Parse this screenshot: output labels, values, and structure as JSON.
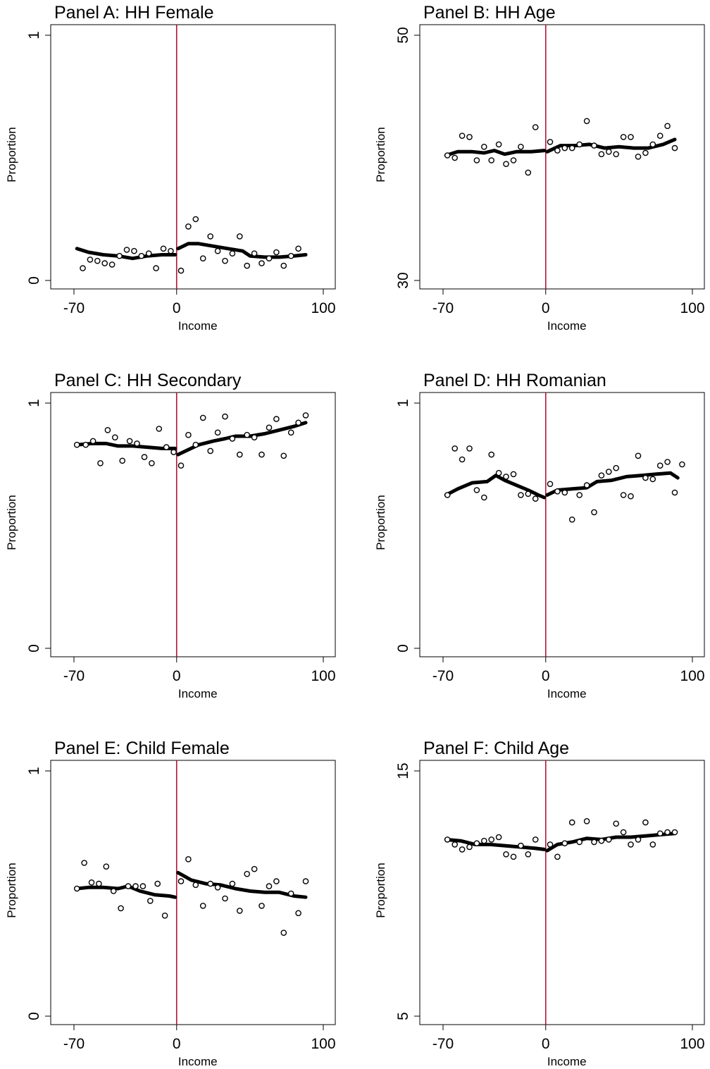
{
  "figure": {
    "cutoff_color": "#b0143c",
    "line_color": "#000000",
    "background": "#ffffff"
  },
  "chart_data": [
    {
      "type": "scatter",
      "title": "Panel A: HH Female",
      "xlabel": "Income",
      "ylabel": "Proportion",
      "xlim": [
        -70,
        100
      ],
      "ylim": [
        0,
        1
      ],
      "xticks": [
        "-70",
        "0",
        "100"
      ],
      "yticks": [
        "0",
        "1"
      ],
      "cutoff": 0,
      "points": [
        [
          -64,
          0.05
        ],
        [
          -59,
          0.085
        ],
        [
          -54,
          0.08
        ],
        [
          -49,
          0.07
        ],
        [
          -44,
          0.065
        ],
        [
          -39,
          0.1
        ],
        [
          -34,
          0.125
        ],
        [
          -29,
          0.12
        ],
        [
          -24,
          0.1
        ],
        [
          -19,
          0.11
        ],
        [
          -14,
          0.05
        ],
        [
          -9,
          0.13
        ],
        [
          -4,
          0.12
        ],
        [
          3,
          0.04
        ],
        [
          8,
          0.22
        ],
        [
          13,
          0.25
        ],
        [
          18,
          0.09
        ],
        [
          23,
          0.18
        ],
        [
          28,
          0.12
        ],
        [
          33,
          0.08
        ],
        [
          38,
          0.11
        ],
        [
          43,
          0.18
        ],
        [
          48,
          0.06
        ],
        [
          53,
          0.11
        ],
        [
          58,
          0.07
        ],
        [
          63,
          0.09
        ],
        [
          68,
          0.115
        ],
        [
          73,
          0.06
        ],
        [
          78,
          0.1
        ],
        [
          83,
          0.13
        ]
      ],
      "smooth_left": [
        [
          -68,
          0.13
        ],
        [
          -60,
          0.115
        ],
        [
          -50,
          0.105
        ],
        [
          -40,
          0.1
        ],
        [
          -30,
          0.09
        ],
        [
          -20,
          0.1
        ],
        [
          -10,
          0.105
        ],
        [
          -1,
          0.105
        ]
      ],
      "smooth_right": [
        [
          1,
          0.13
        ],
        [
          8,
          0.15
        ],
        [
          15,
          0.15
        ],
        [
          25,
          0.14
        ],
        [
          35,
          0.13
        ],
        [
          45,
          0.12
        ],
        [
          50,
          0.1
        ],
        [
          60,
          0.095
        ],
        [
          70,
          0.095
        ],
        [
          80,
          0.1
        ],
        [
          88,
          0.105
        ]
      ]
    },
    {
      "type": "scatter",
      "title": "Panel B: HH Age",
      "xlabel": "Income",
      "ylabel": "Proportion",
      "xlim": [
        -70,
        100
      ],
      "ylim": [
        30,
        50
      ],
      "xticks": [
        "-70",
        "0",
        "100"
      ],
      "yticks": [
        "30",
        "50"
      ],
      "cutoff": 0,
      "points": [
        [
          -67,
          40.2
        ],
        [
          -62,
          40
        ],
        [
          -57,
          41.8
        ],
        [
          -52,
          41.7
        ],
        [
          -47,
          39.8
        ],
        [
          -42,
          40.9
        ],
        [
          -37,
          39.8
        ],
        [
          -32,
          41.1
        ],
        [
          -27,
          39.5
        ],
        [
          -22,
          39.8
        ],
        [
          -17,
          40.9
        ],
        [
          -12,
          38.8
        ],
        [
          -7,
          42.5
        ],
        [
          3,
          41.3
        ],
        [
          8,
          40.6
        ],
        [
          13,
          40.8
        ],
        [
          18,
          40.8
        ],
        [
          23,
          41.1
        ],
        [
          28,
          43
        ],
        [
          33,
          41
        ],
        [
          38,
          40.3
        ],
        [
          43,
          40.5
        ],
        [
          48,
          40.3
        ],
        [
          53,
          41.7
        ],
        [
          58,
          41.7
        ],
        [
          63,
          40.1
        ],
        [
          68,
          40.4
        ],
        [
          73,
          41.1
        ],
        [
          78,
          41.8
        ],
        [
          83,
          42.6
        ],
        [
          88,
          40.8
        ]
      ],
      "smooth_left": [
        [
          -68,
          40.2
        ],
        [
          -60,
          40.5
        ],
        [
          -50,
          40.5
        ],
        [
          -42,
          40.4
        ],
        [
          -35,
          40.6
        ],
        [
          -28,
          40.3
        ],
        [
          -20,
          40.5
        ],
        [
          -10,
          40.5
        ],
        [
          -1,
          40.6
        ]
      ],
      "smooth_right": [
        [
          1,
          40.5
        ],
        [
          10,
          41
        ],
        [
          20,
          41
        ],
        [
          30,
          41.1
        ],
        [
          40,
          40.8
        ],
        [
          50,
          40.9
        ],
        [
          60,
          40.8
        ],
        [
          70,
          40.8
        ],
        [
          80,
          41.1
        ],
        [
          88,
          41.5
        ]
      ]
    },
    {
      "type": "scatter",
      "title": "Panel C: HH Secondary",
      "xlabel": "Income",
      "ylabel": "Proportion",
      "xlim": [
        -70,
        100
      ],
      "ylim": [
        0,
        1
      ],
      "xticks": [
        "-70",
        "0",
        "100"
      ],
      "yticks": [
        "0",
        "1"
      ],
      "cutoff": 0,
      "points": [
        [
          -68,
          0.83
        ],
        [
          -62,
          0.83
        ],
        [
          -57,
          0.845
        ],
        [
          -52,
          0.755
        ],
        [
          -47,
          0.89
        ],
        [
          -42,
          0.86
        ],
        [
          -37,
          0.765
        ],
        [
          -32,
          0.845
        ],
        [
          -27,
          0.835
        ],
        [
          -22,
          0.78
        ],
        [
          -17,
          0.755
        ],
        [
          -12,
          0.895
        ],
        [
          -7,
          0.82
        ],
        [
          -2,
          0.8
        ],
        [
          3,
          0.745
        ],
        [
          8,
          0.87
        ],
        [
          13,
          0.83
        ],
        [
          18,
          0.94
        ],
        [
          23,
          0.805
        ],
        [
          28,
          0.88
        ],
        [
          33,
          0.945
        ],
        [
          38,
          0.855
        ],
        [
          43,
          0.79
        ],
        [
          48,
          0.87
        ],
        [
          53,
          0.86
        ],
        [
          58,
          0.79
        ],
        [
          63,
          0.9
        ],
        [
          68,
          0.935
        ],
        [
          73,
          0.785
        ],
        [
          78,
          0.88
        ],
        [
          83,
          0.92
        ],
        [
          88,
          0.95
        ]
      ],
      "smooth_left": [
        [
          -68,
          0.83
        ],
        [
          -58,
          0.835
        ],
        [
          -48,
          0.835
        ],
        [
          -40,
          0.825
        ],
        [
          -30,
          0.825
        ],
        [
          -20,
          0.82
        ],
        [
          -10,
          0.815
        ],
        [
          -1,
          0.815
        ]
      ],
      "smooth_right": [
        [
          1,
          0.79
        ],
        [
          8,
          0.81
        ],
        [
          15,
          0.83
        ],
        [
          25,
          0.845
        ],
        [
          33,
          0.855
        ],
        [
          40,
          0.865
        ],
        [
          50,
          0.865
        ],
        [
          60,
          0.875
        ],
        [
          70,
          0.89
        ],
        [
          80,
          0.905
        ],
        [
          88,
          0.92
        ]
      ]
    },
    {
      "type": "scatter",
      "title": "Panel D: HH Romanian",
      "xlabel": "Income",
      "ylabel": "Proportion",
      "xlim": [
        -70,
        100
      ],
      "ylim": [
        0,
        1
      ],
      "xticks": [
        "-70",
        "0",
        "100"
      ],
      "yticks": [
        "0",
        "1"
      ],
      "cutoff": 0,
      "points": [
        [
          -67,
          0.625
        ],
        [
          -62,
          0.815
        ],
        [
          -57,
          0.77
        ],
        [
          -52,
          0.815
        ],
        [
          -47,
          0.645
        ],
        [
          -42,
          0.615
        ],
        [
          -37,
          0.79
        ],
        [
          -32,
          0.715
        ],
        [
          -27,
          0.7
        ],
        [
          -22,
          0.71
        ],
        [
          -17,
          0.625
        ],
        [
          -12,
          0.63
        ],
        [
          -7,
          0.61
        ],
        [
          3,
          0.67
        ],
        [
          8,
          0.64
        ],
        [
          13,
          0.635
        ],
        [
          18,
          0.525
        ],
        [
          23,
          0.625
        ],
        [
          28,
          0.665
        ],
        [
          33,
          0.555
        ],
        [
          38,
          0.705
        ],
        [
          43,
          0.72
        ],
        [
          48,
          0.735
        ],
        [
          53,
          0.625
        ],
        [
          58,
          0.62
        ],
        [
          63,
          0.785
        ],
        [
          68,
          0.695
        ],
        [
          73,
          0.69
        ],
        [
          78,
          0.745
        ],
        [
          83,
          0.76
        ],
        [
          88,
          0.635
        ],
        [
          93,
          0.75
        ]
      ],
      "smooth_left": [
        [
          -68,
          0.625
        ],
        [
          -60,
          0.65
        ],
        [
          -50,
          0.675
        ],
        [
          -40,
          0.68
        ],
        [
          -34,
          0.705
        ],
        [
          -28,
          0.685
        ],
        [
          -20,
          0.665
        ],
        [
          -12,
          0.645
        ],
        [
          -5,
          0.625
        ],
        [
          -1,
          0.615
        ]
      ],
      "smooth_right": [
        [
          1,
          0.625
        ],
        [
          8,
          0.645
        ],
        [
          18,
          0.65
        ],
        [
          28,
          0.655
        ],
        [
          35,
          0.68
        ],
        [
          45,
          0.685
        ],
        [
          55,
          0.7
        ],
        [
          65,
          0.705
        ],
        [
          75,
          0.71
        ],
        [
          85,
          0.715
        ],
        [
          90,
          0.695
        ]
      ]
    },
    {
      "type": "scatter",
      "title": "Panel E: Child Female",
      "xlabel": "Income",
      "ylabel": "Proportion",
      "xlim": [
        -70,
        100
      ],
      "ylim": [
        0,
        1
      ],
      "xticks": [
        "-70",
        "0",
        "100"
      ],
      "yticks": [
        "0",
        "1"
      ],
      "cutoff": 0,
      "points": [
        [
          -68,
          0.52
        ],
        [
          -63,
          0.625
        ],
        [
          -58,
          0.545
        ],
        [
          -53,
          0.54
        ],
        [
          -48,
          0.61
        ],
        [
          -43,
          0.51
        ],
        [
          -38,
          0.44
        ],
        [
          -33,
          0.53
        ],
        [
          -28,
          0.53
        ],
        [
          -23,
          0.53
        ],
        [
          -18,
          0.47
        ],
        [
          -13,
          0.54
        ],
        [
          -8,
          0.41
        ],
        [
          3,
          0.55
        ],
        [
          8,
          0.64
        ],
        [
          13,
          0.535
        ],
        [
          18,
          0.45
        ],
        [
          23,
          0.54
        ],
        [
          28,
          0.525
        ],
        [
          33,
          0.48
        ],
        [
          38,
          0.54
        ],
        [
          43,
          0.43
        ],
        [
          48,
          0.58
        ],
        [
          53,
          0.6
        ],
        [
          58,
          0.45
        ],
        [
          63,
          0.53
        ],
        [
          68,
          0.55
        ],
        [
          73,
          0.34
        ],
        [
          78,
          0.5
        ],
        [
          83,
          0.42
        ],
        [
          88,
          0.55
        ]
      ],
      "smooth_left": [
        [
          -68,
          0.52
        ],
        [
          -60,
          0.525
        ],
        [
          -50,
          0.525
        ],
        [
          -40,
          0.52
        ],
        [
          -33,
          0.53
        ],
        [
          -25,
          0.51
        ],
        [
          -15,
          0.495
        ],
        [
          -5,
          0.49
        ],
        [
          -1,
          0.485
        ]
      ],
      "smooth_right": [
        [
          1,
          0.585
        ],
        [
          10,
          0.555
        ],
        [
          20,
          0.54
        ],
        [
          30,
          0.535
        ],
        [
          40,
          0.52
        ],
        [
          50,
          0.51
        ],
        [
          60,
          0.505
        ],
        [
          70,
          0.505
        ],
        [
          80,
          0.49
        ],
        [
          88,
          0.485
        ]
      ]
    },
    {
      "type": "scatter",
      "title": "Panel F: Child Age",
      "xlabel": "Income",
      "ylabel": "Proportion",
      "xlim": [
        -70,
        100
      ],
      "ylim": [
        5,
        15
      ],
      "xticks": [
        "-70",
        "0",
        "100"
      ],
      "yticks": [
        "5",
        "15"
      ],
      "cutoff": 0,
      "points": [
        [
          -67,
          12.2
        ],
        [
          -62,
          12
        ],
        [
          -57,
          11.8
        ],
        [
          -52,
          11.9
        ],
        [
          -47,
          12.05
        ],
        [
          -42,
          12.15
        ],
        [
          -37,
          12.2
        ],
        [
          -32,
          12.3
        ],
        [
          -27,
          11.6
        ],
        [
          -22,
          11.5
        ],
        [
          -17,
          11.95
        ],
        [
          -12,
          11.6
        ],
        [
          -7,
          12.2
        ],
        [
          3,
          12
        ],
        [
          8,
          11.5
        ],
        [
          13,
          12.05
        ],
        [
          18,
          12.9
        ],
        [
          23,
          12.1
        ],
        [
          28,
          12.95
        ],
        [
          33,
          12.1
        ],
        [
          38,
          12.15
        ],
        [
          43,
          12.2
        ],
        [
          48,
          12.85
        ],
        [
          53,
          12.5
        ],
        [
          58,
          12
        ],
        [
          63,
          12.2
        ],
        [
          68,
          12.9
        ],
        [
          73,
          12
        ],
        [
          78,
          12.45
        ],
        [
          83,
          12.5
        ],
        [
          88,
          12.5
        ]
      ],
      "smooth_left": [
        [
          -68,
          12.2
        ],
        [
          -58,
          12.15
        ],
        [
          -48,
          12
        ],
        [
          -38,
          12
        ],
        [
          -28,
          11.95
        ],
        [
          -18,
          11.9
        ],
        [
          -8,
          11.85
        ],
        [
          -1,
          11.8
        ]
      ],
      "smooth_right": [
        [
          1,
          11.75
        ],
        [
          8,
          12
        ],
        [
          18,
          12.1
        ],
        [
          28,
          12.25
        ],
        [
          38,
          12.2
        ],
        [
          48,
          12.3
        ],
        [
          58,
          12.3
        ],
        [
          68,
          12.35
        ],
        [
          78,
          12.4
        ],
        [
          88,
          12.45
        ]
      ]
    }
  ]
}
